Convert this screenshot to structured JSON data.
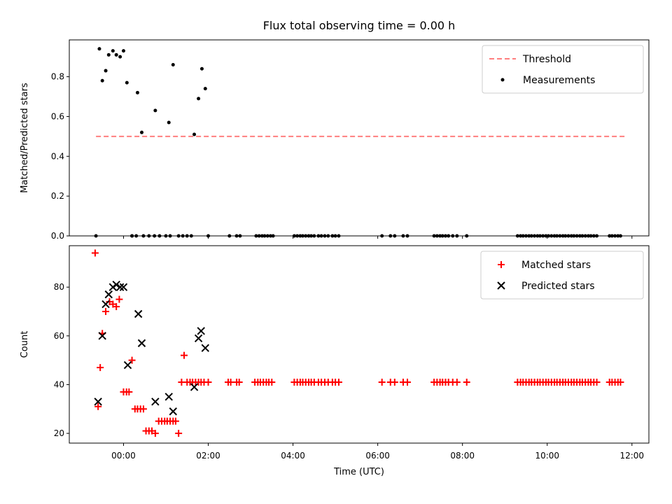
{
  "chart_data": [
    {
      "type": "scatter",
      "title": "Flux total observing time = 0.00 h",
      "xlabel": "",
      "ylabel": "Matched/Predicted stars",
      "xlim": [
        -1.28,
        12.4
      ],
      "ylim": [
        0,
        0.985
      ],
      "yticks": [
        0.0,
        0.2,
        0.4,
        0.6,
        0.8
      ],
      "ytick_labels": [
        "0.0",
        "0.2",
        "0.4",
        "0.6",
        "0.8"
      ],
      "legend_position": "top-right",
      "threshold": {
        "name": "Threshold",
        "value": 0.5,
        "x_range": [
          -0.65,
          11.85
        ],
        "color": "#ff7f7f"
      },
      "series": [
        {
          "name": "Measurements",
          "color": "#000000",
          "x": [
            -0.65,
            -0.57,
            -0.5,
            -0.42,
            -0.35,
            -0.25,
            -0.17,
            -0.08,
            0.0,
            0.08,
            0.2,
            0.33,
            0.43,
            0.75,
            1.07,
            1.17,
            1.67,
            1.77,
            1.85,
            1.93,
            0.2,
            0.3,
            0.47,
            0.6,
            0.73,
            0.85,
            1.0,
            1.1,
            1.3,
            1.4,
            1.5,
            1.6,
            2.0,
            2.5,
            2.67,
            2.75,
            3.13,
            3.2,
            3.27,
            3.33,
            3.4,
            3.47,
            3.53,
            4.03,
            4.1,
            4.17,
            4.23,
            4.3,
            4.37,
            4.43,
            4.5,
            4.6,
            4.67,
            4.75,
            4.83,
            4.93,
            5.0,
            5.08,
            6.1,
            6.3,
            6.4,
            6.6,
            6.7,
            7.33,
            7.4,
            7.47,
            7.53,
            7.6,
            7.67,
            7.77,
            7.87,
            8.1,
            9.3,
            9.37,
            9.43,
            9.5,
            9.57,
            9.63,
            9.7,
            9.77,
            9.83,
            9.9,
            9.97,
            10.03,
            10.1,
            10.17,
            10.23,
            10.3,
            10.37,
            10.43,
            10.5,
            10.57,
            10.63,
            10.7,
            10.77,
            10.83,
            10.9,
            10.97,
            11.03,
            11.1,
            11.17,
            11.47,
            11.53,
            11.6,
            11.67,
            11.73
          ],
          "y": [
            0.0,
            0.94,
            0.78,
            0.83,
            0.91,
            0.93,
            0.91,
            0.9,
            0.93,
            0.77,
            0.0,
            0.72,
            0.52,
            0.63,
            0.57,
            0.86,
            0.51,
            0.69,
            0.84,
            0.74,
            0.0,
            0.0,
            0.0,
            0.0,
            0.0,
            0.0,
            0.0,
            0.0,
            0.0,
            0.0,
            0.0,
            0.0,
            0.0,
            0.0,
            0.0,
            0.0,
            0.0,
            0.0,
            0.0,
            0.0,
            0.0,
            0.0,
            0.0,
            0.0,
            0.0,
            0.0,
            0.0,
            0.0,
            0.0,
            0.0,
            0.0,
            0.0,
            0.0,
            0.0,
            0.0,
            0.0,
            0.0,
            0.0,
            0.0,
            0.0,
            0.0,
            0.0,
            0.0,
            0.0,
            0.0,
            0.0,
            0.0,
            0.0,
            0.0,
            0.0,
            0.0,
            0.0,
            0.0,
            0.0,
            0.0,
            0.0,
            0.0,
            0.0,
            0.0,
            0.0,
            0.0,
            0.0,
            0.0,
            0.0,
            0.0,
            0.0,
            0.0,
            0.0,
            0.0,
            0.0,
            0.0,
            0.0,
            0.0,
            0.0,
            0.0,
            0.0,
            0.0,
            0.0,
            0.0,
            0.0,
            0.0,
            0.0,
            0.0,
            0.0,
            0.0,
            0.0
          ]
        }
      ]
    },
    {
      "type": "scatter",
      "title": "",
      "xlabel": "Time (UTC)",
      "ylabel": "Count",
      "xlim": [
        -1.28,
        12.4
      ],
      "ylim": [
        16,
        97
      ],
      "yticks": [
        20,
        40,
        60,
        80
      ],
      "ytick_labels": [
        "20",
        "40",
        "60",
        "80"
      ],
      "xticks": [
        0,
        2,
        4,
        6,
        8,
        10,
        12
      ],
      "xtick_labels": [
        "00:00",
        "02:00",
        "04:00",
        "06:00",
        "08:00",
        "10:00",
        "12:00"
      ],
      "legend_position": "top-right",
      "series": [
        {
          "name": "Matched stars",
          "marker": "plus",
          "color": "#ff0000",
          "x": [
            -0.67,
            -0.6,
            -0.55,
            -0.5,
            -0.42,
            -0.33,
            -0.25,
            -0.17,
            -0.1,
            0.0,
            0.07,
            0.13,
            0.2,
            0.27,
            0.33,
            0.4,
            0.47,
            0.53,
            0.6,
            0.67,
            0.75,
            0.83,
            0.9,
            0.97,
            1.03,
            1.1,
            1.17,
            1.23,
            1.3,
            1.37,
            1.43,
            1.5,
            1.57,
            1.63,
            1.7,
            1.77,
            1.83,
            1.9,
            2.0,
            2.47,
            2.53,
            2.67,
            2.73,
            3.1,
            3.17,
            3.23,
            3.3,
            3.37,
            3.43,
            3.5,
            4.03,
            4.1,
            4.17,
            4.23,
            4.3,
            4.37,
            4.43,
            4.5,
            4.6,
            4.67,
            4.75,
            4.83,
            4.93,
            5.0,
            5.08,
            6.1,
            6.3,
            6.4,
            6.6,
            6.7,
            7.33,
            7.4,
            7.47,
            7.53,
            7.6,
            7.67,
            7.77,
            7.87,
            8.1,
            9.3,
            9.37,
            9.43,
            9.5,
            9.57,
            9.63,
            9.7,
            9.77,
            9.83,
            9.9,
            9.97,
            10.03,
            10.1,
            10.17,
            10.23,
            10.3,
            10.37,
            10.43,
            10.5,
            10.57,
            10.63,
            10.7,
            10.77,
            10.83,
            10.9,
            10.97,
            11.03,
            11.1,
            11.17,
            11.47,
            11.53,
            11.6,
            11.67,
            11.73
          ],
          "y": [
            94,
            31,
            47,
            61,
            70,
            74,
            73,
            72,
            75,
            37,
            37,
            37,
            50,
            30,
            30,
            30,
            30,
            21,
            21,
            21,
            20,
            25,
            25,
            25,
            25,
            25,
            25,
            25,
            20,
            41,
            52,
            41,
            41,
            41,
            41,
            41,
            41,
            41,
            41,
            41,
            41,
            41,
            41,
            41,
            41,
            41,
            41,
            41,
            41,
            41,
            41,
            41,
            41,
            41,
            41,
            41,
            41,
            41,
            41,
            41,
            41,
            41,
            41,
            41,
            41,
            41,
            41,
            41,
            41,
            41,
            41,
            41,
            41,
            41,
            41,
            41,
            41,
            41,
            41,
            41,
            41,
            41,
            41,
            41,
            41,
            41,
            41,
            41,
            41,
            41,
            41,
            41,
            41,
            41,
            41,
            41,
            41,
            41,
            41,
            41,
            41,
            41,
            41,
            41,
            41,
            41,
            41,
            41,
            41,
            41,
            41,
            41,
            41
          ]
        },
        {
          "name": "Predicted stars",
          "marker": "x",
          "color": "#000000",
          "x": [
            -0.6,
            -0.5,
            -0.42,
            -0.35,
            -0.25,
            -0.17,
            -0.08,
            0.0,
            0.1,
            0.35,
            0.43,
            0.75,
            1.07,
            1.17,
            1.67,
            1.77,
            1.83,
            1.93
          ],
          "y": [
            33,
            60,
            73,
            77,
            80,
            81,
            80,
            80,
            48,
            69,
            57,
            33,
            35,
            29,
            39,
            59,
            62,
            55
          ]
        }
      ]
    }
  ]
}
